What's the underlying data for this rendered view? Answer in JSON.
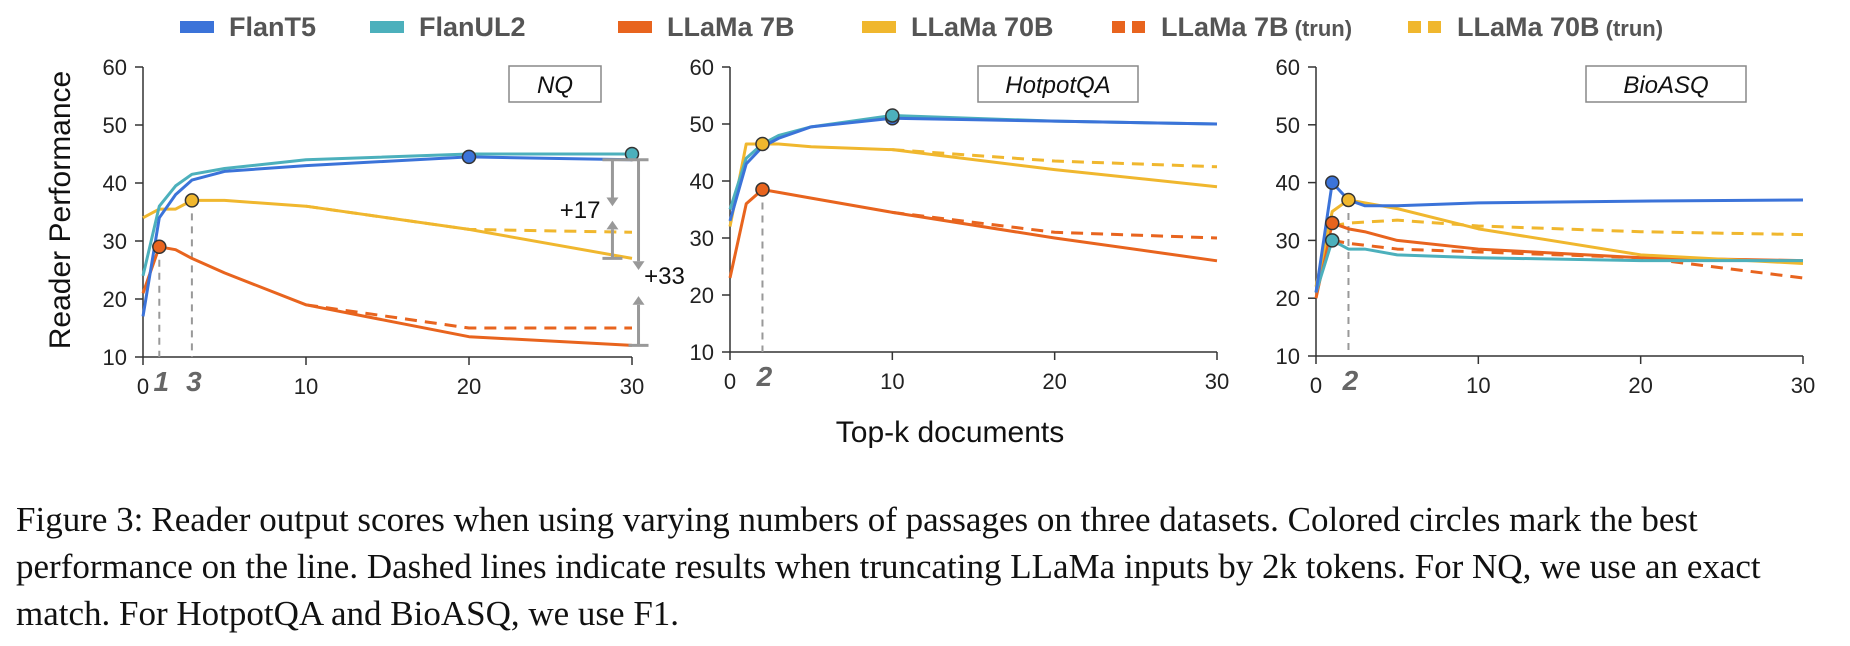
{
  "legend": [
    {
      "label": "FlanT5",
      "suffix": "",
      "color": "#3b73d9",
      "dashed": false
    },
    {
      "label": "FlanUL2",
      "suffix": "",
      "color": "#4cb0bc",
      "dashed": false
    },
    {
      "label": "LLaMa 7B",
      "suffix": "",
      "color": "#e8641e",
      "dashed": false
    },
    {
      "label": "LLaMa 70B",
      "suffix": "",
      "color": "#f0b72e",
      "dashed": false
    },
    {
      "label": "LLaMa 7B",
      "suffix": "(trun)",
      "color": "#e8641e",
      "dashed": true
    },
    {
      "label": "LLaMa 70B",
      "suffix": "(trun)",
      "color": "#f0b72e",
      "dashed": true
    }
  ],
  "ylabel": "Reader Performance",
  "xlabel": "Top-k documents",
  "chart_data": [
    {
      "type": "line",
      "title": "NQ",
      "x": [
        0,
        1,
        2,
        3,
        5,
        10,
        20,
        30
      ],
      "ylim": [
        10,
        60
      ],
      "xlim": [
        0,
        30
      ],
      "xticks": [
        0,
        10,
        20,
        30
      ],
      "yticks": [
        10,
        20,
        30,
        40,
        50,
        60
      ],
      "series": [
        {
          "name": "FlanT5",
          "values": [
            17,
            34,
            38,
            40.5,
            42,
            43,
            44.5,
            44
          ],
          "best_x": 20,
          "best_y": 44.5
        },
        {
          "name": "FlanUL2",
          "values": [
            24,
            36,
            39.5,
            41.5,
            42.5,
            44,
            45,
            45
          ],
          "best_x": 30,
          "best_y": 45
        },
        {
          "name": "LLaMa 7B",
          "values": [
            21,
            29,
            28.5,
            27,
            24.5,
            19,
            13.5,
            12
          ],
          "best_x": 1,
          "best_y": 29
        },
        {
          "name": "LLaMa 70B",
          "values": [
            34,
            35.5,
            35.5,
            37,
            37,
            36,
            32,
            27
          ],
          "best_x": 3,
          "best_y": 37
        },
        {
          "name": "LLaMa 7B (trun)",
          "x": [
            10,
            20,
            30
          ],
          "values": [
            19,
            15,
            15
          ]
        },
        {
          "name": "LLaMa 70B (trun)",
          "x": [
            10,
            20,
            30
          ],
          "values": [
            36,
            32,
            31.5
          ]
        }
      ],
      "best_k_labels": [
        "1",
        "3"
      ],
      "annotations": [
        "+17",
        "+33"
      ]
    },
    {
      "type": "line",
      "title": "HotpotQA",
      "x": [
        0,
        1,
        2,
        3,
        5,
        10,
        20,
        30
      ],
      "ylim": [
        10,
        60
      ],
      "xlim": [
        0,
        30
      ],
      "xticks": [
        0,
        10,
        20,
        30
      ],
      "yticks": [
        10,
        20,
        30,
        40,
        50,
        60
      ],
      "series": [
        {
          "name": "FlanT5",
          "values": [
            33,
            43,
            46,
            47.5,
            49.5,
            51,
            50.5,
            50
          ],
          "best_x": 10,
          "best_y": 51
        },
        {
          "name": "FlanUL2",
          "values": [
            35,
            44,
            46.5,
            48,
            49.5,
            51.5,
            50.5,
            50
          ],
          "best_x": 10,
          "best_y": 51.5
        },
        {
          "name": "LLaMa 7B",
          "values": [
            23,
            36,
            38.5,
            38,
            37,
            34.5,
            30,
            26
          ],
          "best_x": 2,
          "best_y": 38.5
        },
        {
          "name": "LLaMa 70B",
          "values": [
            32,
            46.5,
            46.5,
            46.5,
            46,
            45.5,
            42,
            39
          ],
          "best_x": 2,
          "best_y": 46.5
        },
        {
          "name": "LLaMa 7B (trun)",
          "x": [
            10,
            20,
            30
          ],
          "values": [
            34.5,
            31,
            30
          ]
        },
        {
          "name": "LLaMa 70B (trun)",
          "x": [
            10,
            20,
            30
          ],
          "values": [
            45.5,
            43.5,
            42.5
          ]
        }
      ],
      "best_k_labels": [
        "2"
      ],
      "annotations": []
    },
    {
      "type": "line",
      "title": "BioASQ",
      "x": [
        0,
        1,
        2,
        3,
        5,
        10,
        20,
        30
      ],
      "ylim": [
        10,
        60
      ],
      "xlim": [
        0,
        30
      ],
      "xticks": [
        0,
        10,
        20,
        30
      ],
      "yticks": [
        10,
        20,
        30,
        40,
        50,
        60
      ],
      "series": [
        {
          "name": "FlanT5",
          "values": [
            21,
            40,
            37,
            36,
            36,
            36.5,
            36.8,
            37
          ],
          "best_x": 1,
          "best_y": 40
        },
        {
          "name": "FlanUL2",
          "values": [
            21,
            30,
            28.5,
            28.5,
            27.5,
            27,
            26.5,
            26.5
          ],
          "best_x": 1,
          "best_y": 30
        },
        {
          "name": "LLaMa 7B",
          "values": [
            20,
            33,
            32,
            31.5,
            30,
            28.5,
            27,
            26.5
          ],
          "best_x": 1,
          "best_y": 33
        },
        {
          "name": "LLaMa 70B",
          "values": [
            22,
            35,
            37,
            36.5,
            35.5,
            32,
            27.5,
            26
          ],
          "best_x": 2,
          "best_y": 37
        },
        {
          "name": "LLaMa 7B (trun)",
          "x": [
            1,
            2,
            5,
            10,
            20,
            30
          ],
          "values": [
            30,
            29.5,
            28.5,
            28,
            27,
            23.5
          ]
        },
        {
          "name": "LLaMa 70B (trun)",
          "x": [
            1,
            2,
            5,
            10,
            20,
            30
          ],
          "values": [
            32.5,
            33,
            33.5,
            32.5,
            31.5,
            31
          ]
        }
      ],
      "best_k_labels": [
        "2"
      ],
      "annotations": []
    }
  ],
  "caption": {
    "label": "Figure 3:",
    "text": "Reader output scores when using varying numbers of passages on three datasets. Colored circles mark the best performance on the line. Dashed lines indicate results when truncating LLaMa inputs by 2k tokens. For NQ, we use an exact match. For HotpotQA and BioASQ, we use F1."
  }
}
